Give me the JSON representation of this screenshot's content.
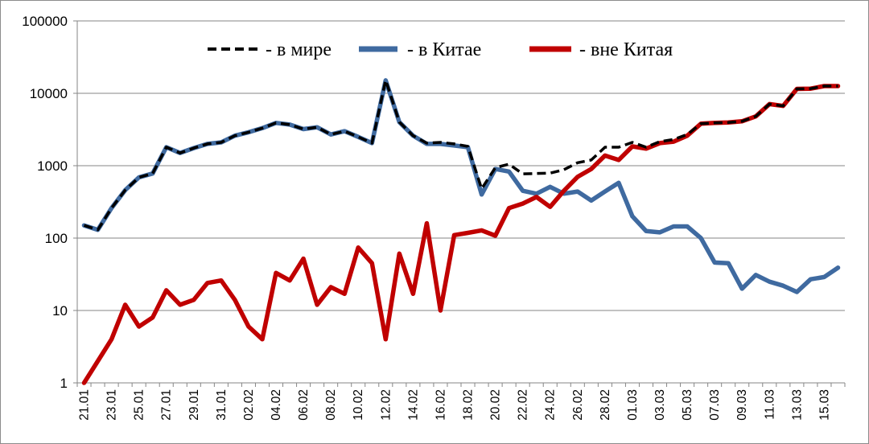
{
  "chart_data": {
    "type": "line",
    "y_scale": "log",
    "ylim": [
      1,
      100000
    ],
    "y_ticks": [
      "1",
      "10",
      "100",
      "1000",
      "10000",
      "100000"
    ],
    "grid": "horizontal",
    "legend_position": "top",
    "x": [
      "21.01",
      "22.01",
      "23.01",
      "24.01",
      "25.01",
      "26.01",
      "27.01",
      "28.01",
      "29.01",
      "30.01",
      "31.01",
      "01.02",
      "02.02",
      "03.02",
      "04.02",
      "05.02",
      "06.02",
      "07.02",
      "08.02",
      "09.02",
      "10.02",
      "11.02",
      "12.02",
      "13.02",
      "14.02",
      "15.02",
      "16.02",
      "17.02",
      "18.02",
      "19.02",
      "20.02",
      "21.02",
      "22.02",
      "23.02",
      "24.02",
      "25.02",
      "26.02",
      "27.02",
      "28.02",
      "29.02",
      "01.03",
      "02.03",
      "03.03",
      "04.03",
      "05.03",
      "06.03",
      "07.03",
      "08.03",
      "09.03",
      "10.03",
      "11.03",
      "12.03",
      "13.03",
      "14.03",
      "15.03",
      "16.03"
    ],
    "x_tick_labels": [
      "21.01",
      "23.01",
      "25.01",
      "27.01",
      "29.01",
      "31.01",
      "02.02",
      "04.02",
      "06.02",
      "08.02",
      "10.02",
      "12.02",
      "14.02",
      "16.02",
      "18.02",
      "20.02",
      "22.02",
      "24.02",
      "26.02",
      "28.02",
      "01.03",
      "03.03",
      "05.03",
      "07.03",
      "09.03",
      "11.03",
      "13.03",
      "15.03"
    ],
    "series": [
      {
        "name": "- в мире",
        "color": "#000000",
        "style": "dashed",
        "values": [
          150,
          130,
          260,
          460,
          690,
          780,
          1800,
          1500,
          1750,
          2000,
          2100,
          2600,
          2900,
          3300,
          3900,
          3700,
          3200,
          3400,
          2700,
          3000,
          2500,
          2050,
          15200,
          4000,
          2600,
          2050,
          2100,
          2000,
          1850,
          480,
          940,
          1050,
          770,
          780,
          790,
          880,
          1100,
          1200,
          1800,
          1800,
          2100,
          1800,
          2150,
          2300,
          2700,
          3800,
          3900,
          3950,
          4100,
          4800,
          7100,
          6700,
          11500,
          11600,
          12600,
          12600
        ]
      },
      {
        "name": "- в Китае",
        "color": "#3f6aa0",
        "style": "solid",
        "values": [
          150,
          130,
          260,
          460,
          690,
          780,
          1800,
          1500,
          1750,
          2000,
          2100,
          2600,
          2900,
          3300,
          3900,
          3700,
          3200,
          3400,
          2700,
          3000,
          2500,
          2050,
          15100,
          4000,
          2600,
          2000,
          2000,
          1900,
          1800,
          400,
          900,
          830,
          450,
          410,
          510,
          410,
          440,
          330,
          440,
          580,
          200,
          125,
          120,
          145,
          145,
          100,
          46,
          45,
          20,
          31,
          25,
          22,
          18,
          27,
          29,
          39
        ]
      },
      {
        "name": "- вне Китая",
        "color": "#c00000",
        "style": "solid",
        "values": [
          1,
          2,
          4,
          12,
          6,
          8,
          19,
          12,
          14,
          24,
          26,
          14,
          6,
          4,
          33,
          26,
          52,
          12,
          21,
          17,
          74,
          45,
          4,
          61,
          17,
          160,
          10,
          110,
          118,
          128,
          108,
          260,
          300,
          370,
          270,
          450,
          700,
          900,
          1380,
          1200,
          1850,
          1720,
          2050,
          2150,
          2600,
          3800,
          3900,
          3950,
          4100,
          4800,
          7100,
          6700,
          11500,
          11600,
          12600,
          12600
        ]
      }
    ]
  }
}
